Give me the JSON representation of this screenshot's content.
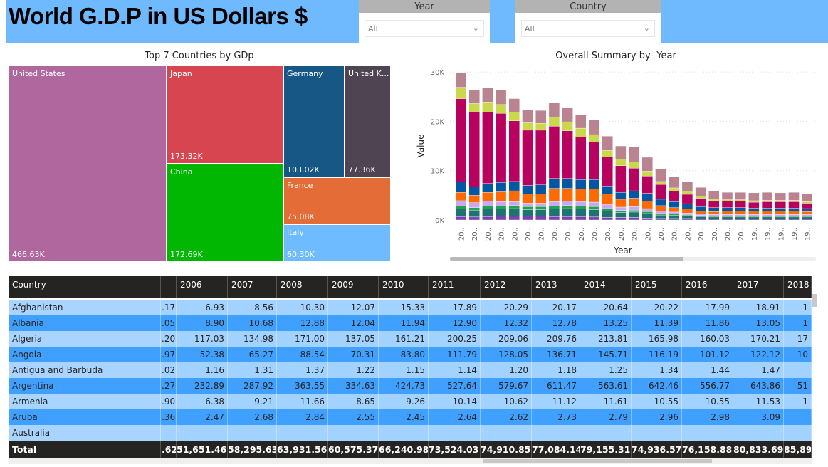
{
  "header": {
    "title": "World G.D.P in US Dollars $"
  },
  "slicers": [
    {
      "label": "Year",
      "value": "All"
    },
    {
      "label": "Country",
      "value": "All"
    }
  ],
  "treemap": {
    "title": "Top 7 Countries by GDp",
    "items": [
      {
        "name": "United States",
        "value": "466.63K",
        "color": "#b0679e"
      },
      {
        "name": "Japan",
        "value": "173.32K",
        "color": "#d74650"
      },
      {
        "name": "China",
        "value": "172.69K",
        "color": "#01b701"
      },
      {
        "name": "Germany",
        "value": "103.02K",
        "color": "#175785"
      },
      {
        "name": "United K...",
        "value": "77.36K",
        "color": "#4f4452"
      },
      {
        "name": "France",
        "value": "75.08K",
        "color": "#e36c37"
      },
      {
        "name": "Italy",
        "value": "60.30K",
        "color": "#6fbbff"
      }
    ]
  },
  "chart_data": {
    "type": "bar",
    "stacked": true,
    "title": "Overall Summary by- Year",
    "xlabel": "Year",
    "ylabel": "Value",
    "ylim": [
      0,
      30000
    ],
    "yticks": [
      "0K",
      "10K",
      "20K",
      "30K"
    ],
    "grid": true,
    "categories": [
      "20..",
      "20..",
      "20..",
      "20..",
      "20..",
      "20..",
      "20..",
      "20..",
      "20..",
      "20..",
      "20..",
      "20..",
      "20..",
      "20..",
      "20..",
      "20..",
      "20..",
      "20..",
      "20..",
      "20..",
      "20..",
      "20..",
      "19..",
      "19..",
      "19..",
      "19..",
      "19.."
    ],
    "series_colors": [
      "#7b3fb5",
      "#1c7372",
      "#22a24a",
      "#c8a8f8",
      "#ff6a00",
      "#0256a3",
      "#b8005f",
      "#c9d94a",
      "#b9838f"
    ],
    "values_k": [
      [
        0.7,
        1.5,
        0.6,
        1.1,
        1.7,
        2.1,
        16.9,
        2.3,
        3.0
      ],
      [
        0.6,
        1.4,
        0.5,
        1.0,
        1.5,
        1.7,
        15.2,
        1.7,
        2.7
      ],
      [
        0.7,
        1.5,
        0.6,
        1.0,
        1.8,
        1.8,
        14.5,
        2.0,
        2.9
      ],
      [
        0.8,
        1.4,
        0.6,
        0.9,
        2.0,
        1.9,
        14.0,
        1.8,
        2.9
      ],
      [
        0.8,
        1.5,
        0.6,
        0.8,
        2.2,
        1.9,
        12.3,
        1.8,
        2.7
      ],
      [
        0.8,
        1.3,
        0.6,
        0.7,
        1.9,
        1.7,
        11.2,
        1.5,
        2.6
      ],
      [
        0.8,
        1.3,
        0.6,
        0.7,
        1.9,
        1.8,
        11.1,
        1.4,
        2.6
      ],
      [
        0.7,
        1.5,
        0.6,
        0.9,
        2.7,
        2.0,
        10.6,
        1.8,
        3.0
      ],
      [
        0.7,
        1.6,
        0.6,
        0.9,
        2.6,
        2.0,
        9.7,
        1.8,
        2.8
      ],
      [
        0.7,
        1.5,
        0.6,
        0.9,
        2.6,
        1.9,
        8.6,
        1.8,
        2.7
      ],
      [
        0.6,
        1.5,
        0.6,
        0.9,
        2.7,
        1.9,
        7.6,
        1.5,
        3.0
      ],
      [
        0.5,
        1.3,
        0.5,
        0.8,
        2.2,
        1.6,
        5.9,
        1.3,
        2.9
      ],
      [
        0.5,
        1.0,
        0.4,
        0.7,
        1.6,
        1.4,
        5.4,
        1.3,
        2.7
      ],
      [
        0.5,
        1.1,
        0.4,
        0.7,
        1.7,
        1.5,
        4.6,
        1.3,
        3.0
      ],
      [
        0.4,
        0.9,
        0.4,
        0.6,
        1.5,
        1.6,
        3.5,
        1.0,
        2.8
      ],
      [
        0.3,
        0.7,
        0.3,
        0.5,
        1.1,
        1.3,
        3.0,
        0.6,
        2.5
      ],
      [
        0.3,
        0.6,
        0.3,
        0.4,
        0.9,
        1.2,
        2.2,
        0.6,
        2.2
      ],
      [
        0.3,
        0.5,
        0.2,
        0.4,
        0.8,
        1.1,
        1.9,
        0.6,
        2.0
      ],
      [
        0.2,
        0.5,
        0.2,
        0.3,
        0.6,
        0.9,
        1.7,
        0.4,
        1.8
      ],
      [
        0.2,
        0.4,
        0.2,
        0.3,
        0.6,
        0.8,
        1.4,
        0.3,
        1.6
      ],
      [
        0.2,
        0.4,
        0.2,
        0.3,
        0.7,
        0.7,
        1.3,
        0.3,
        1.5
      ],
      [
        0.2,
        0.4,
        0.2,
        0.3,
        0.7,
        0.7,
        1.3,
        0.3,
        1.5
      ],
      [
        0.2,
        0.4,
        0.2,
        0.3,
        0.7,
        0.6,
        1.2,
        0.3,
        1.6
      ],
      [
        0.2,
        0.4,
        0.2,
        0.3,
        0.7,
        0.6,
        1.3,
        0.3,
        1.6
      ],
      [
        0.2,
        0.4,
        0.2,
        0.3,
        0.7,
        0.6,
        1.3,
        0.3,
        1.5
      ],
      [
        0.2,
        0.4,
        0.2,
        0.3,
        0.7,
        0.6,
        1.3,
        0.3,
        1.6
      ],
      [
        0.2,
        0.4,
        0.2,
        0.3,
        0.6,
        0.6,
        1.1,
        0.3,
        1.6
      ]
    ]
  },
  "table": {
    "columns": [
      "Country",
      "",
      "2006",
      "2007",
      "2008",
      "2009",
      "2010",
      "2011",
      "2012",
      "2013",
      "2014",
      "2015",
      "2016",
      "2017",
      "2018"
    ],
    "rows": [
      [
        "Afghanistan",
        ".17",
        "6.93",
        "8.56",
        "10.30",
        "12.07",
        "15.33",
        "17.89",
        "20.29",
        "20.17",
        "20.64",
        "20.22",
        "17.99",
        "18.91",
        "1"
      ],
      [
        "Albania",
        ".05",
        "8.90",
        "10.68",
        "12.88",
        "12.04",
        "11.94",
        "12.90",
        "12.32",
        "12.78",
        "13.25",
        "11.39",
        "11.86",
        "13.05",
        "1"
      ],
      [
        "Algeria",
        ".20",
        "117.03",
        "134.98",
        "171.00",
        "137.05",
        "161.21",
        "200.25",
        "209.06",
        "209.76",
        "213.81",
        "165.98",
        "160.03",
        "170.21",
        "17"
      ],
      [
        "Angola",
        ".97",
        "52.38",
        "65.27",
        "88.54",
        "70.31",
        "83.80",
        "111.79",
        "128.05",
        "136.71",
        "145.71",
        "116.19",
        "101.12",
        "122.12",
        "10"
      ],
      [
        "Antigua and Barbuda",
        ".02",
        "1.16",
        "1.31",
        "1.37",
        "1.22",
        "1.15",
        "1.14",
        "1.20",
        "1.18",
        "1.25",
        "1.34",
        "1.44",
        "1.47",
        ""
      ],
      [
        "Argentina",
        ".27",
        "232.89",
        "287.92",
        "363.55",
        "334.63",
        "424.73",
        "527.64",
        "579.67",
        "611.47",
        "563.61",
        "642.46",
        "556.77",
        "643.86",
        "51"
      ],
      [
        "Armenia",
        ".90",
        "6.38",
        "9.21",
        "11.66",
        "8.65",
        "9.26",
        "10.14",
        "10.62",
        "11.12",
        "11.61",
        "10.55",
        "10.55",
        "11.53",
        "1"
      ],
      [
        "Aruba",
        ".36",
        "2.47",
        "2.68",
        "2.84",
        "2.55",
        "2.45",
        "2.64",
        "2.62",
        "2.73",
        "2.79",
        "2.96",
        "2.98",
        "3.09",
        ""
      ],
      [
        "Australia",
        "",
        "",
        "",
        "",
        "",
        "",
        "",
        "",
        "",
        "",
        "",
        "",
        "",
        ""
      ]
    ],
    "total": [
      "Total",
      ".62",
      "51,651.46",
      "58,295.63",
      "63,931.56",
      "60,575.37",
      "66,240.98",
      "73,524.03",
      "74,910.85",
      "77,084.14",
      "79,155.31",
      "74,936.57",
      "76,158.88",
      "80,833.69",
      "85,89"
    ]
  }
}
